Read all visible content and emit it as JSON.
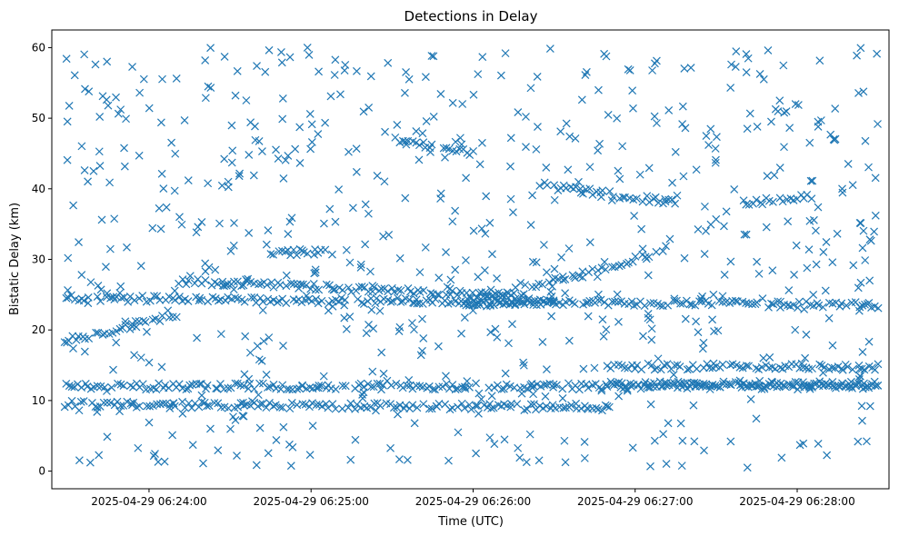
{
  "chart_data": {
    "type": "scatter",
    "title": "Detections in Delay",
    "xlabel": "Time (UTC)",
    "ylabel": "Bistatic Delay (km)",
    "xlim": [
      "2025-04-29 06:23:24",
      "2025-04-29 06:28:34"
    ],
    "ylim": [
      -2.5,
      62.5
    ],
    "xticks": [
      {
        "value": "2025-04-29 06:24:00",
        "label": "2025-04-29 06:24:00"
      },
      {
        "value": "2025-04-29 06:25:00",
        "label": "2025-04-29 06:25:00"
      },
      {
        "value": "2025-04-29 06:26:00",
        "label": "2025-04-29 06:26:00"
      },
      {
        "value": "2025-04-29 06:27:00",
        "label": "2025-04-29 06:27:00"
      },
      {
        "value": "2025-04-29 06:28:00",
        "label": "2025-04-29 06:28:00"
      }
    ],
    "yticks": [
      0,
      10,
      20,
      30,
      40,
      50,
      60
    ],
    "grid": false,
    "legend": "none",
    "marker": "x",
    "color": "#1f77b4",
    "series_tracks": [
      {
        "x": [
          "2025-04-29 06:23:29",
          "2025-04-29 06:28:30"
        ],
        "y": [
          24.5,
          23.5
        ]
      },
      {
        "x": [
          "2025-04-29 06:23:29",
          "2025-04-29 06:28:30"
        ],
        "y": [
          12.0,
          12.0
        ]
      },
      {
        "x": [
          "2025-04-29 06:23:29",
          "2025-04-29 06:26:50"
        ],
        "y": [
          9.5,
          9.0
        ]
      },
      {
        "x": [
          "2025-04-29 06:23:29",
          "2025-04-29 06:24:10"
        ],
        "y": [
          18.5,
          22.0
        ]
      },
      {
        "x": [
          "2025-04-29 06:24:10",
          "2025-04-29 06:26:30"
        ],
        "y": [
          27.0,
          24.5
        ]
      },
      {
        "x": [
          "2025-04-29 06:26:00",
          "2025-04-29 06:27:10"
        ],
        "y": [
          24.0,
          31.0
        ]
      },
      {
        "x": [
          "2025-04-29 06:26:25",
          "2025-04-29 06:27:15"
        ],
        "y": [
          40.5,
          38.0
        ]
      },
      {
        "x": [
          "2025-04-29 06:27:40",
          "2025-04-29 06:28:05"
        ],
        "y": [
          38.0,
          38.8
        ]
      },
      {
        "x": [
          "2025-04-29 06:25:30",
          "2025-04-29 06:26:00"
        ],
        "y": [
          47.0,
          45.0
        ]
      },
      {
        "x": [
          "2025-04-29 06:26:50",
          "2025-04-29 06:28:30"
        ],
        "y": [
          14.8,
          14.8
        ]
      },
      {
        "x": [
          "2025-04-29 06:26:50",
          "2025-04-29 06:28:30"
        ],
        "y": [
          12.3,
          12.3
        ]
      },
      {
        "x": [
          "2025-04-29 06:24:45",
          "2025-04-29 06:25:05"
        ],
        "y": [
          31.0,
          31.0
        ]
      },
      {
        "x": [
          "2025-04-29 06:25:55",
          "2025-04-29 06:26:30"
        ],
        "y": [
          23.5,
          24.0
        ]
      }
    ],
    "scatter_noise": {
      "x_range": [
        "2025-04-29 06:23:29",
        "2025-04-29 06:28:30"
      ],
      "y_range": [
        0.5,
        60
      ],
      "count": 700
    }
  }
}
